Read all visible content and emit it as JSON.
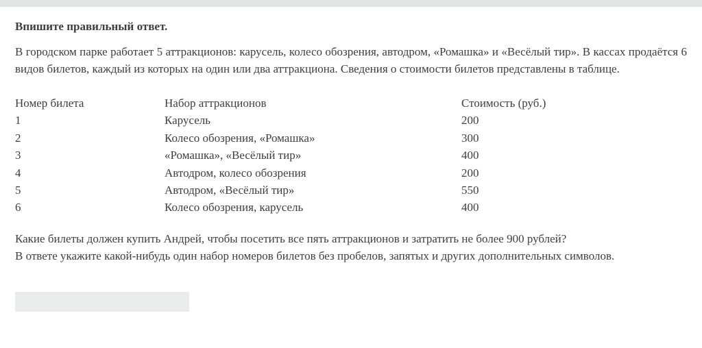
{
  "page": {
    "title": "Впишите правильный ответ.",
    "intro": "В городском парке работает 5 аттракционов: карусель, колесо обозрения, автодром, «Ромашка» и «Весёлый тир». В кассах продаётся 6 видов билетов, каждый из которых на один или два аттракциона. Сведения о стоимости билетов представлены в таблице."
  },
  "table": {
    "headers": [
      "Номер билета",
      "Набор аттракционов",
      "Стоимость (руб.)"
    ],
    "rows": [
      [
        "1",
        "Карусель",
        "200"
      ],
      [
        "2",
        "Колесо обозрения, «Ромашка»",
        "300"
      ],
      [
        "3",
        "«Ромашка», «Весёлый тир»",
        "400"
      ],
      [
        "4",
        "Автодром, колесо обозрения",
        "200"
      ],
      [
        "5",
        "Автодром, «Весёлый тир»",
        "550"
      ],
      [
        "6",
        "Колесо обозрения, карусель",
        "400"
      ]
    ]
  },
  "question": {
    "line1": "Какие билеты должен купить Андрей, чтобы посетить все пять аттракционов и затратить не более 900 рублей?",
    "line2": "В ответе укажите какой-нибудь один набор номеров билетов без пробелов, запятых и других дополнительных символов."
  },
  "answer_input": {
    "value": "",
    "placeholder": ""
  },
  "colors": {
    "top_strip": "#e1e4e5",
    "input_background": "#e9eced",
    "text": "#3e3e3e",
    "page_background": "#ffffff"
  }
}
